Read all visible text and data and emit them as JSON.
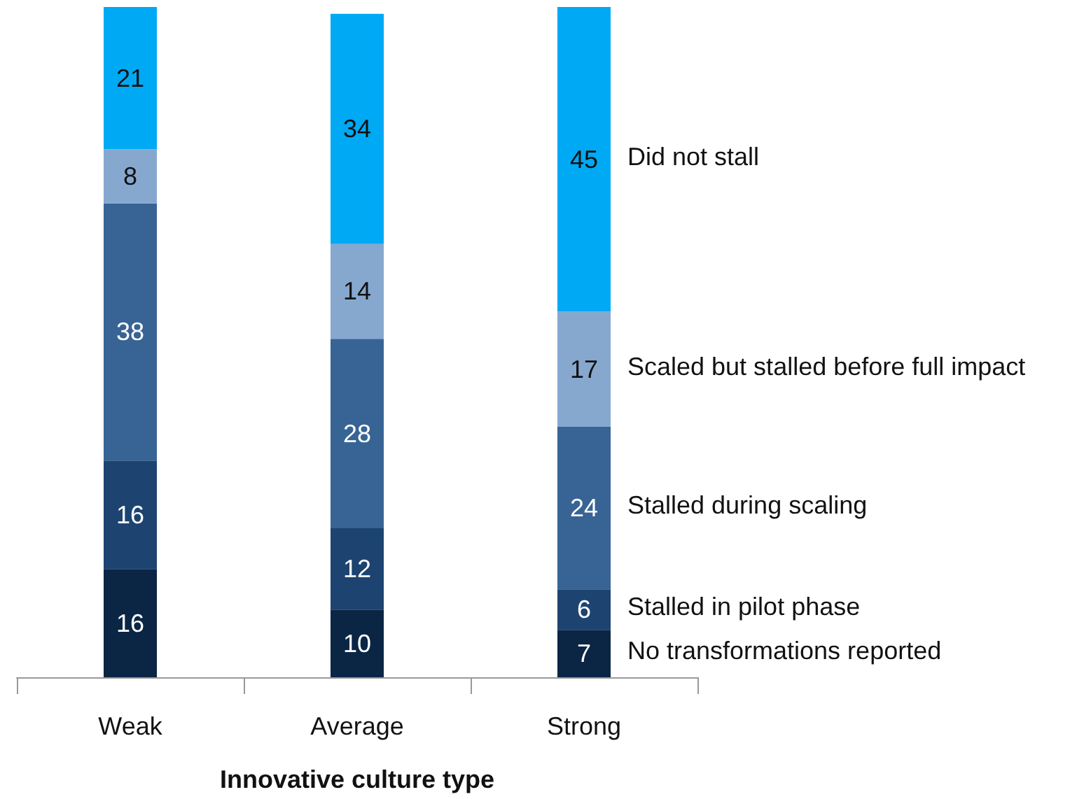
{
  "chart_data": {
    "type": "bar",
    "stacked": true,
    "data_labels": true,
    "legend": "right",
    "xlabel": "Innovative culture type",
    "categories": [
      "Weak",
      "Average",
      "Strong"
    ],
    "series": [
      {
        "name": "No transformations reported",
        "color": "#0b2545",
        "values": [
          16,
          10,
          7
        ]
      },
      {
        "name": "Stalled in pilot phase",
        "color": "#1d4470",
        "values": [
          16,
          12,
          6
        ]
      },
      {
        "name": "Stalled during scaling",
        "color": "#376494",
        "values": [
          38,
          28,
          24
        ]
      },
      {
        "name": "Scaled but stalled before full impact",
        "color": "#86a8cf",
        "values": [
          8,
          14,
          17
        ]
      },
      {
        "name": "Did not stall",
        "color": "#00a9f4",
        "values": [
          21,
          34,
          45
        ]
      }
    ]
  }
}
